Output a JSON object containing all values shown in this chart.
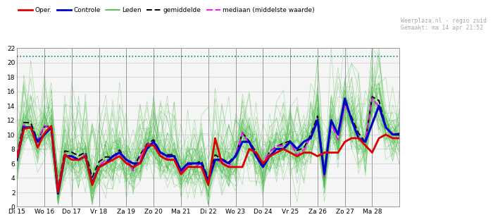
{
  "title_right": "Weerplaza.nl - regio zuid\nGemaakt: ma 14 apr 21:52",
  "x_labels": [
    "Di 15",
    "Wo 16",
    "Do 17",
    "Vr 18",
    "Za 19",
    "Zo 20",
    "Ma 21",
    "Di 22",
    "Wo 23",
    "Do 24",
    "Vr 25",
    "Za 26",
    "Zo 27",
    "Ma 28"
  ],
  "y_ticks": [
    0,
    2,
    4,
    6,
    8,
    10,
    12,
    14,
    16,
    18,
    20,
    22
  ],
  "ylim": [
    0,
    22
  ],
  "hline_value": 20.8,
  "hline_color": "#008080",
  "background_color": "#ffffff",
  "plot_bg_color": "#f5f5f5",
  "grid_color": "#cccccc",
  "oper_color": "#dd0000",
  "controle_color": "#0000cc",
  "leden_color": "#44bb44",
  "gemiddelde_color": "#000000",
  "mediaan_color": "#ff00ff",
  "num_ensemble_members": 51,
  "base_pattern": [
    7.0,
    10.5,
    11.0,
    8.5,
    10.5,
    11.0,
    2.2,
    7.0,
    6.5,
    6.5,
    7.0,
    3.0,
    5.5,
    6.0,
    6.5,
    7.0,
    6.0,
    5.5,
    6.0,
    8.5,
    8.5,
    7.0,
    6.5,
    6.5,
    4.5,
    5.5,
    5.5,
    5.5,
    3.0,
    6.0,
    6.0,
    5.5,
    6.5,
    9.5,
    8.5,
    7.0,
    5.5,
    7.5,
    8.0,
    8.5,
    8.5,
    7.5,
    8.5,
    9.5,
    12.0,
    4.5,
    11.5,
    9.5,
    14.5,
    11.5,
    9.5,
    8.5,
    14.5,
    14.0,
    10.5,
    9.5,
    10.0
  ],
  "oper_pattern": [
    6.8,
    10.8,
    11.0,
    8.2,
    10.2,
    11.2,
    2.0,
    7.2,
    6.5,
    6.5,
    7.0,
    3.0,
    5.5,
    6.0,
    6.5,
    7.0,
    6.0,
    5.5,
    6.0,
    8.5,
    8.5,
    7.0,
    6.5,
    6.5,
    4.5,
    5.5,
    5.5,
    5.5,
    3.0,
    9.5,
    6.0,
    5.5,
    5.5,
    5.5,
    8.0,
    7.5,
    6.0,
    7.0,
    7.5,
    8.0,
    7.5,
    7.0,
    7.5,
    7.5,
    7.0,
    7.5,
    7.5,
    7.5,
    9.0,
    9.5,
    9.5,
    8.5,
    7.5,
    9.5,
    10.0,
    9.5,
    9.5
  ],
  "controle_pattern": [
    6.5,
    11.0,
    11.0,
    9.0,
    10.0,
    11.0,
    1.8,
    7.0,
    7.0,
    6.5,
    7.0,
    3.2,
    5.5,
    6.0,
    7.0,
    7.5,
    6.5,
    6.0,
    6.0,
    8.0,
    9.0,
    7.5,
    7.0,
    7.0,
    5.0,
    6.0,
    6.0,
    6.0,
    3.5,
    6.5,
    6.5,
    6.0,
    7.0,
    9.0,
    9.0,
    7.0,
    5.5,
    7.0,
    8.0,
    8.0,
    9.0,
    8.0,
    9.0,
    9.5,
    12.0,
    4.5,
    12.0,
    10.0,
    15.0,
    12.0,
    9.5,
    9.0,
    11.5,
    14.0,
    11.0,
    10.0,
    10.0
  ]
}
